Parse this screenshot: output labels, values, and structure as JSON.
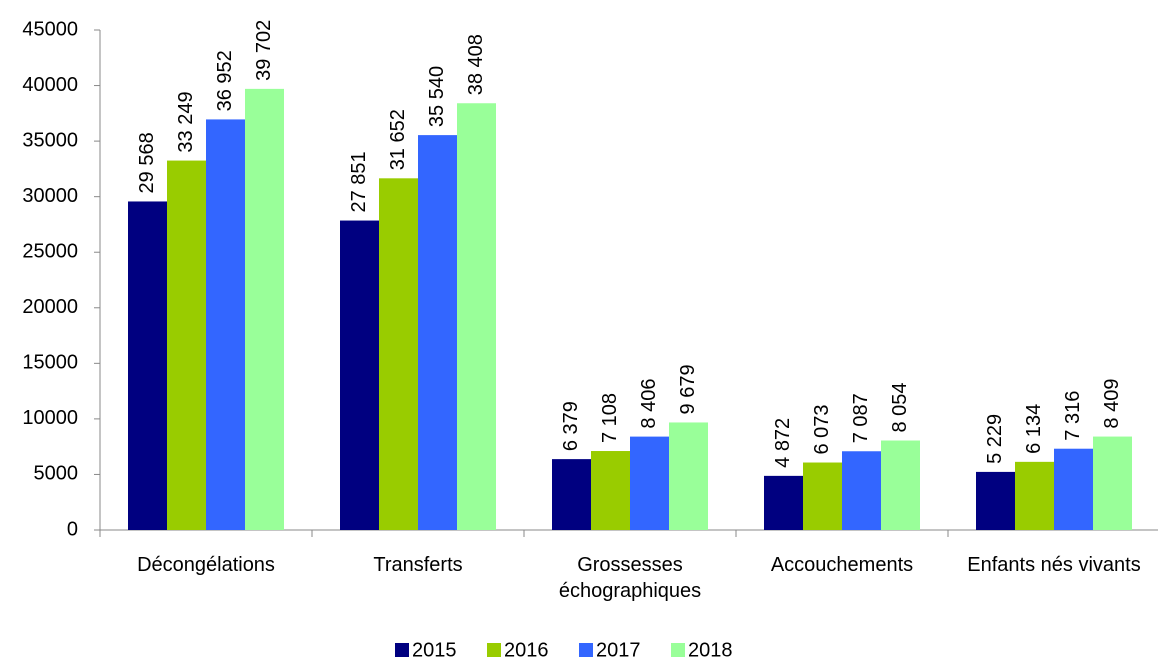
{
  "chart_data": {
    "type": "bar",
    "categories": [
      "Décongélations",
      "Transferts",
      "Grossesses échographiques",
      "Accouchements",
      "Enfants nés vivants"
    ],
    "series": [
      {
        "name": "2015",
        "color": "#000080",
        "values": [
          29568,
          27851,
          6379,
          4872,
          5229
        ],
        "value_labels": [
          "29 568",
          "27 851",
          "6 379",
          "4 872",
          "5 229"
        ]
      },
      {
        "name": "2016",
        "color": "#99cc00",
        "values": [
          33249,
          31652,
          7108,
          6073,
          6134
        ],
        "value_labels": [
          "33 249",
          "31 652",
          "7 108",
          "6 073",
          "6 134"
        ]
      },
      {
        "name": "2017",
        "color": "#3366ff",
        "values": [
          36952,
          35540,
          8406,
          7087,
          7316
        ],
        "value_labels": [
          "36 952",
          "35 540",
          "8 406",
          "7 087",
          "7 316"
        ]
      },
      {
        "name": "2018",
        "color": "#99ff99",
        "values": [
          39702,
          38408,
          9679,
          8054,
          8409
        ],
        "value_labels": [
          "39 702",
          "38 408",
          "9 679",
          "8 054",
          "8 409"
        ]
      }
    ],
    "ylim": [
      0,
      45000
    ],
    "yticks": [
      0,
      5000,
      10000,
      15000,
      20000,
      25000,
      30000,
      35000,
      40000,
      45000
    ],
    "legend": "bottom"
  }
}
